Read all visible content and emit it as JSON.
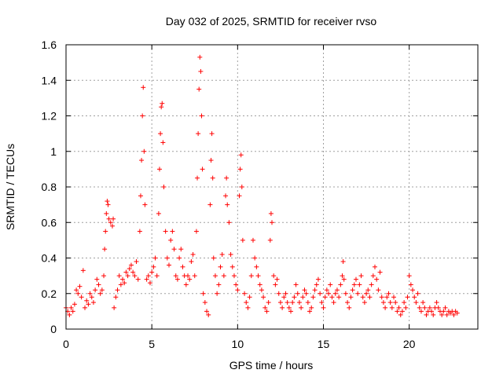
{
  "chart_data": {
    "type": "scatter",
    "title": "Day 032 of 2025, SRMTID for receiver rvso",
    "xlabel": "GPS time / hours",
    "ylabel": "SRMTID / TECUs",
    "xlim": [
      0,
      24
    ],
    "ylim": [
      0,
      1.6
    ],
    "xticks": [
      0,
      5,
      10,
      15,
      20
    ],
    "xtick_labels": [
      "0",
      "5",
      "10",
      "15",
      "20"
    ],
    "yticks": [
      0,
      0.2,
      0.4,
      0.6,
      0.8,
      1.0,
      1.2,
      1.4,
      1.6
    ],
    "ytick_labels": [
      "0",
      "0.2",
      "0.4",
      "0.6",
      "0.8",
      "1",
      "1.2",
      "1.4",
      "1.6"
    ],
    "grid": true,
    "marker": "plus",
    "color": "#ff0000",
    "series": [
      {
        "name": "SRMTID",
        "points": [
          [
            0.0,
            0.12
          ],
          [
            0.1,
            0.1
          ],
          [
            0.2,
            0.08
          ],
          [
            0.3,
            0.12
          ],
          [
            0.4,
            0.1
          ],
          [
            0.5,
            0.14
          ],
          [
            0.6,
            0.22
          ],
          [
            0.7,
            0.2
          ],
          [
            0.8,
            0.24
          ],
          [
            0.9,
            0.18
          ],
          [
            1.0,
            0.33
          ],
          [
            1.1,
            0.12
          ],
          [
            1.2,
            0.16
          ],
          [
            1.3,
            0.14
          ],
          [
            1.4,
            0.2
          ],
          [
            1.5,
            0.18
          ],
          [
            1.6,
            0.15
          ],
          [
            1.7,
            0.22
          ],
          [
            1.8,
            0.28
          ],
          [
            1.9,
            0.25
          ],
          [
            2.0,
            0.2
          ],
          [
            2.1,
            0.22
          ],
          [
            2.2,
            0.3
          ],
          [
            2.25,
            0.45
          ],
          [
            2.3,
            0.55
          ],
          [
            2.35,
            0.65
          ],
          [
            2.4,
            0.72
          ],
          [
            2.45,
            0.7
          ],
          [
            2.5,
            0.62
          ],
          [
            2.6,
            0.6
          ],
          [
            2.7,
            0.58
          ],
          [
            2.75,
            0.62
          ],
          [
            2.8,
            0.12
          ],
          [
            2.9,
            0.18
          ],
          [
            3.0,
            0.22
          ],
          [
            3.1,
            0.3
          ],
          [
            3.2,
            0.25
          ],
          [
            3.3,
            0.28
          ],
          [
            3.4,
            0.26
          ],
          [
            3.5,
            0.32
          ],
          [
            3.6,
            0.3
          ],
          [
            3.7,
            0.34
          ],
          [
            3.8,
            0.36
          ],
          [
            3.9,
            0.32
          ],
          [
            4.0,
            0.3
          ],
          [
            4.1,
            0.38
          ],
          [
            4.2,
            0.28
          ],
          [
            4.3,
            0.55
          ],
          [
            4.35,
            0.75
          ],
          [
            4.4,
            0.95
          ],
          [
            4.45,
            1.2
          ],
          [
            4.5,
            1.36
          ],
          [
            4.55,
            1.0
          ],
          [
            4.6,
            0.7
          ],
          [
            4.7,
            0.28
          ],
          [
            4.8,
            0.3
          ],
          [
            4.9,
            0.26
          ],
          [
            5.0,
            0.32
          ],
          [
            5.1,
            0.35
          ],
          [
            5.2,
            0.4
          ],
          [
            5.3,
            0.3
          ],
          [
            5.4,
            0.65
          ],
          [
            5.45,
            0.9
          ],
          [
            5.5,
            1.1
          ],
          [
            5.55,
            1.25
          ],
          [
            5.6,
            1.27
          ],
          [
            5.65,
            1.05
          ],
          [
            5.7,
            0.8
          ],
          [
            5.8,
            0.55
          ],
          [
            5.9,
            0.4
          ],
          [
            6.0,
            0.36
          ],
          [
            6.1,
            0.5
          ],
          [
            6.2,
            0.55
          ],
          [
            6.3,
            0.45
          ],
          [
            6.4,
            0.3
          ],
          [
            6.5,
            0.28
          ],
          [
            6.6,
            0.4
          ],
          [
            6.7,
            0.45
          ],
          [
            6.8,
            0.35
          ],
          [
            6.9,
            0.3
          ],
          [
            7.0,
            0.25
          ],
          [
            7.1,
            0.3
          ],
          [
            7.2,
            0.28
          ],
          [
            7.3,
            0.38
          ],
          [
            7.4,
            0.42
          ],
          [
            7.5,
            0.3
          ],
          [
            7.6,
            0.55
          ],
          [
            7.65,
            0.85
          ],
          [
            7.7,
            1.1
          ],
          [
            7.75,
            1.35
          ],
          [
            7.8,
            1.53
          ],
          [
            7.85,
            1.45
          ],
          [
            7.9,
            1.2
          ],
          [
            7.95,
            0.9
          ],
          [
            8.0,
            0.2
          ],
          [
            8.1,
            0.15
          ],
          [
            8.2,
            0.1
          ],
          [
            8.3,
            0.08
          ],
          [
            8.4,
            0.7
          ],
          [
            8.45,
            0.95
          ],
          [
            8.5,
            1.1
          ],
          [
            8.55,
            0.85
          ],
          [
            8.6,
            0.4
          ],
          [
            8.7,
            0.3
          ],
          [
            8.8,
            0.2
          ],
          [
            8.9,
            0.25
          ],
          [
            9.0,
            0.35
          ],
          [
            9.1,
            0.42
          ],
          [
            9.2,
            0.3
          ],
          [
            9.3,
            0.75
          ],
          [
            9.35,
            0.85
          ],
          [
            9.4,
            0.7
          ],
          [
            9.5,
            0.6
          ],
          [
            9.6,
            0.42
          ],
          [
            9.7,
            0.35
          ],
          [
            9.8,
            0.3
          ],
          [
            9.9,
            0.25
          ],
          [
            10.0,
            0.22
          ],
          [
            10.1,
            0.75
          ],
          [
            10.15,
            0.9
          ],
          [
            10.2,
            0.98
          ],
          [
            10.25,
            0.8
          ],
          [
            10.3,
            0.5
          ],
          [
            10.4,
            0.2
          ],
          [
            10.5,
            0.15
          ],
          [
            10.6,
            0.12
          ],
          [
            10.7,
            0.18
          ],
          [
            10.8,
            0.3
          ],
          [
            10.9,
            0.5
          ],
          [
            11.0,
            0.4
          ],
          [
            11.1,
            0.35
          ],
          [
            11.2,
            0.3
          ],
          [
            11.3,
            0.25
          ],
          [
            11.4,
            0.22
          ],
          [
            11.5,
            0.18
          ],
          [
            11.6,
            0.12
          ],
          [
            11.7,
            0.1
          ],
          [
            11.8,
            0.15
          ],
          [
            11.9,
            0.5
          ],
          [
            11.95,
            0.65
          ],
          [
            12.0,
            0.6
          ],
          [
            12.1,
            0.3
          ],
          [
            12.2,
            0.25
          ],
          [
            12.3,
            0.28
          ],
          [
            12.4,
            0.2
          ],
          [
            12.5,
            0.15
          ],
          [
            12.6,
            0.12
          ],
          [
            12.7,
            0.18
          ],
          [
            12.8,
            0.2
          ],
          [
            12.9,
            0.15
          ],
          [
            13.0,
            0.12
          ],
          [
            13.1,
            0.1
          ],
          [
            13.2,
            0.15
          ],
          [
            13.3,
            0.18
          ],
          [
            13.4,
            0.25
          ],
          [
            13.5,
            0.2
          ],
          [
            13.6,
            0.15
          ],
          [
            13.7,
            0.12
          ],
          [
            13.8,
            0.18
          ],
          [
            13.9,
            0.22
          ],
          [
            14.0,
            0.2
          ],
          [
            14.1,
            0.15
          ],
          [
            14.2,
            0.1
          ],
          [
            14.3,
            0.12
          ],
          [
            14.4,
            0.18
          ],
          [
            14.5,
            0.22
          ],
          [
            14.6,
            0.25
          ],
          [
            14.7,
            0.28
          ],
          [
            14.8,
            0.2
          ],
          [
            14.9,
            0.15
          ],
          [
            15.0,
            0.12
          ],
          [
            15.1,
            0.18
          ],
          [
            15.2,
            0.22
          ],
          [
            15.3,
            0.2
          ],
          [
            15.4,
            0.25
          ],
          [
            15.5,
            0.18
          ],
          [
            15.6,
            0.15
          ],
          [
            15.7,
            0.2
          ],
          [
            15.8,
            0.22
          ],
          [
            15.9,
            0.18
          ],
          [
            16.0,
            0.25
          ],
          [
            16.1,
            0.3
          ],
          [
            16.15,
            0.38
          ],
          [
            16.2,
            0.28
          ],
          [
            16.3,
            0.2
          ],
          [
            16.4,
            0.15
          ],
          [
            16.5,
            0.12
          ],
          [
            16.6,
            0.18
          ],
          [
            16.7,
            0.22
          ],
          [
            16.8,
            0.25
          ],
          [
            16.9,
            0.28
          ],
          [
            17.0,
            0.2
          ],
          [
            17.1,
            0.25
          ],
          [
            17.2,
            0.3
          ],
          [
            17.3,
            0.18
          ],
          [
            17.4,
            0.15
          ],
          [
            17.5,
            0.2
          ],
          [
            17.6,
            0.22
          ],
          [
            17.7,
            0.18
          ],
          [
            17.8,
            0.25
          ],
          [
            17.9,
            0.3
          ],
          [
            18.0,
            0.35
          ],
          [
            18.1,
            0.28
          ],
          [
            18.2,
            0.22
          ],
          [
            18.3,
            0.32
          ],
          [
            18.4,
            0.18
          ],
          [
            18.5,
            0.15
          ],
          [
            18.6,
            0.12
          ],
          [
            18.7,
            0.18
          ],
          [
            18.8,
            0.2
          ],
          [
            18.9,
            0.15
          ],
          [
            19.0,
            0.12
          ],
          [
            19.1,
            0.18
          ],
          [
            19.2,
            0.15
          ],
          [
            19.3,
            0.1
          ],
          [
            19.4,
            0.12
          ],
          [
            19.5,
            0.08
          ],
          [
            19.6,
            0.1
          ],
          [
            19.7,
            0.15
          ],
          [
            19.8,
            0.12
          ],
          [
            19.9,
            0.18
          ],
          [
            20.0,
            0.3
          ],
          [
            20.1,
            0.25
          ],
          [
            20.2,
            0.22
          ],
          [
            20.3,
            0.18
          ],
          [
            20.4,
            0.15
          ],
          [
            20.5,
            0.2
          ],
          [
            20.6,
            0.12
          ],
          [
            20.7,
            0.1
          ],
          [
            20.8,
            0.15
          ],
          [
            20.9,
            0.12
          ],
          [
            21.0,
            0.08
          ],
          [
            21.1,
            0.1
          ],
          [
            21.2,
            0.12
          ],
          [
            21.3,
            0.1
          ],
          [
            21.4,
            0.08
          ],
          [
            21.5,
            0.12
          ],
          [
            21.6,
            0.15
          ],
          [
            21.7,
            0.12
          ],
          [
            21.8,
            0.1
          ],
          [
            21.9,
            0.08
          ],
          [
            22.0,
            0.1
          ],
          [
            22.1,
            0.12
          ],
          [
            22.2,
            0.08
          ],
          [
            22.3,
            0.1
          ],
          [
            22.4,
            0.09
          ],
          [
            22.5,
            0.1
          ],
          [
            22.6,
            0.08
          ],
          [
            22.7,
            0.1
          ],
          [
            22.8,
            0.09
          ]
        ]
      }
    ]
  }
}
